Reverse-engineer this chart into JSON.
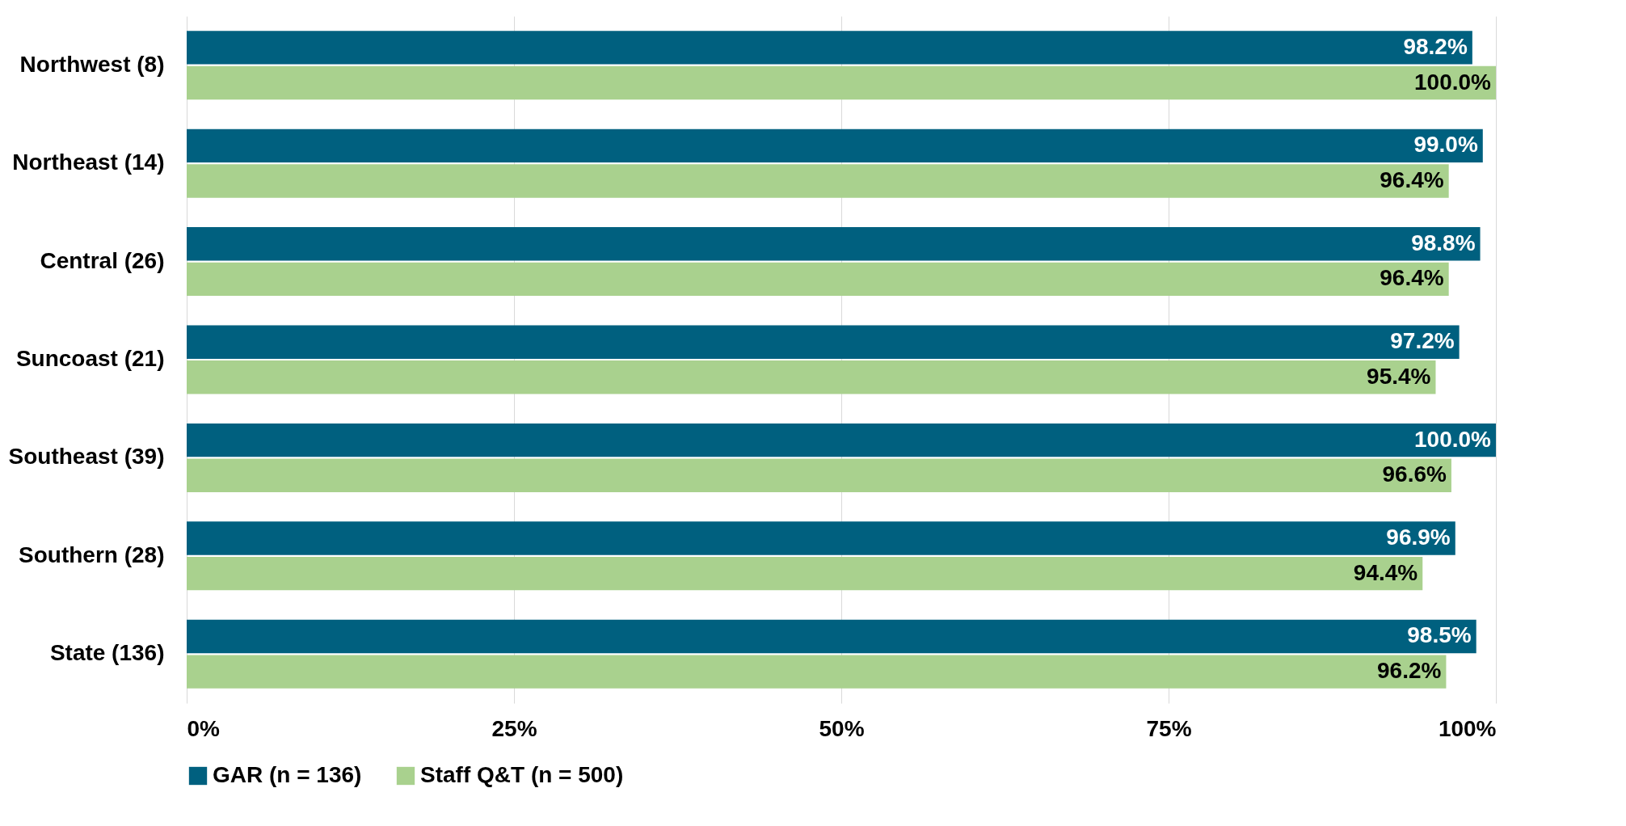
{
  "chart_data": {
    "type": "bar",
    "orientation": "horizontal",
    "categories": [
      "Northwest (8)",
      "Northeast (14)",
      "Central (26)",
      "Suncoast (21)",
      "Southeast (39)",
      "Southern (28)",
      "State (136)"
    ],
    "series": [
      {
        "name": "GAR (n = 136)",
        "color": "#00607f",
        "values": [
          98.2,
          99.0,
          98.8,
          97.2,
          100.0,
          96.9,
          98.5
        ],
        "value_labels": [
          "98.2%",
          "99.0%",
          "98.8%",
          "97.2%",
          "100.0%",
          "96.9%",
          "98.5%"
        ]
      },
      {
        "name": "Staff Q&T (n = 500)",
        "color": "#a9d18e",
        "values": [
          100.0,
          96.4,
          96.4,
          95.4,
          96.6,
          94.4,
          96.2
        ],
        "value_labels": [
          "100.0%",
          "96.4%",
          "96.4%",
          "95.4%",
          "96.6%",
          "94.4%",
          "96.2%"
        ]
      }
    ],
    "xlim": [
      0,
      100
    ],
    "xticks": [
      {
        "value": 0,
        "label": "0%"
      },
      {
        "value": 25,
        "label": "25%"
      },
      {
        "value": 50,
        "label": "50%"
      },
      {
        "value": 75,
        "label": "75%"
      },
      {
        "value": 100,
        "label": "100%"
      }
    ],
    "grid": "x",
    "legend": "bottom"
  }
}
